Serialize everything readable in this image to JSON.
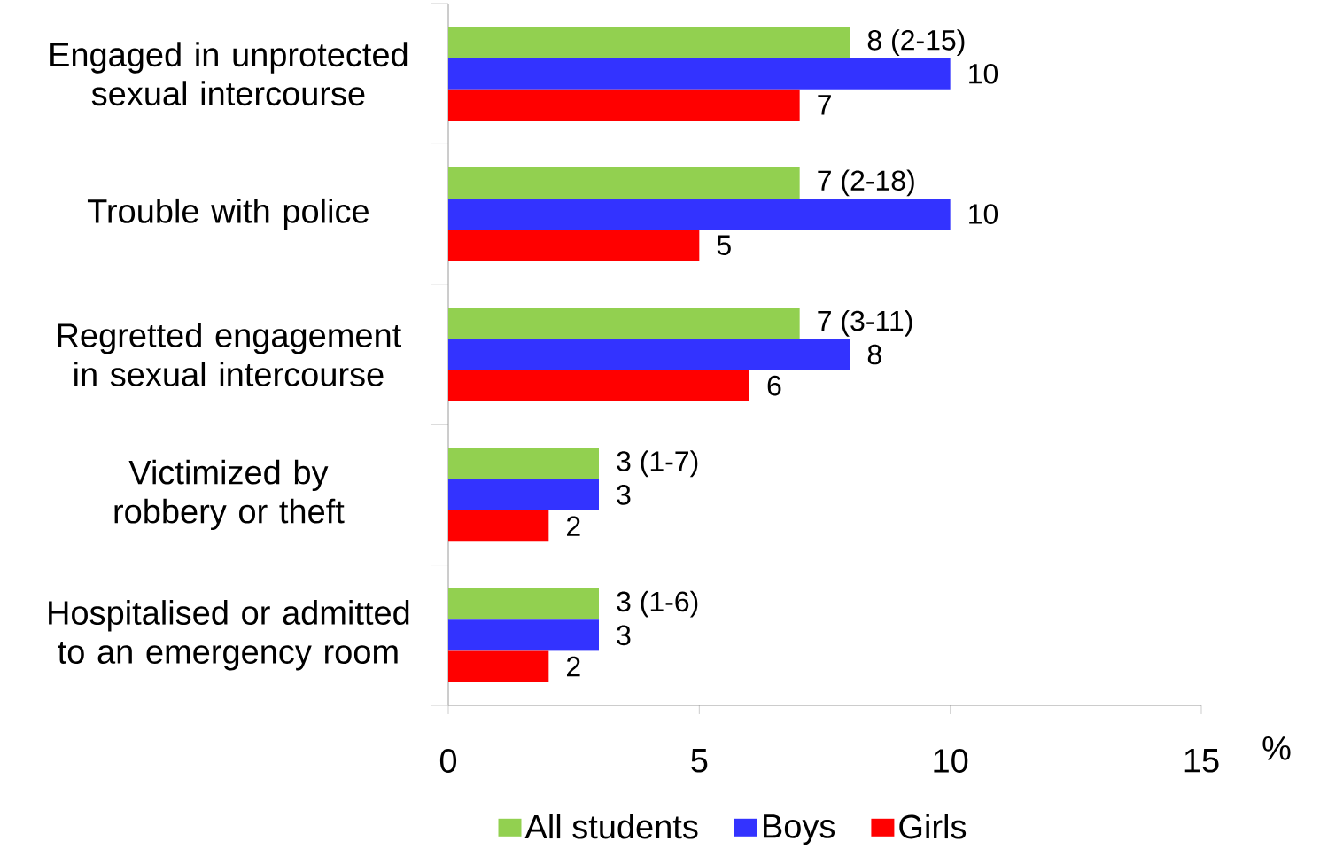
{
  "chart_data": {
    "type": "bar",
    "orientation": "horizontal",
    "categories": [
      "Engaged in unprotected sexual intercourse",
      "Trouble with police",
      "Regretted engagement in sexual intercourse",
      "Victimized by robbery or theft",
      "Hospitalised or admitted to an emergency room"
    ],
    "series": [
      {
        "name": "All students",
        "color": "#92d050",
        "values": [
          8,
          7,
          7,
          3,
          3
        ],
        "value_labels": [
          "8   (2-15)",
          "7 (2-18)",
          "7   (3-11)",
          "3   (1-7)",
          "3   (1-6)"
        ]
      },
      {
        "name": "Boys",
        "color": "#3333ff",
        "values": [
          10,
          10,
          8,
          3,
          3
        ],
        "value_labels": [
          "10",
          "10",
          "8",
          "3",
          "3"
        ]
      },
      {
        "name": "Girls",
        "color": "#ff0000",
        "values": [
          7,
          5,
          6,
          2,
          2
        ],
        "value_labels": [
          "7",
          "5",
          "6",
          "2",
          "2"
        ]
      }
    ],
    "xlim": [
      0,
      15
    ],
    "xticks": [
      0,
      5,
      10,
      15
    ],
    "xlabel": "%",
    "legend": "bottom"
  }
}
